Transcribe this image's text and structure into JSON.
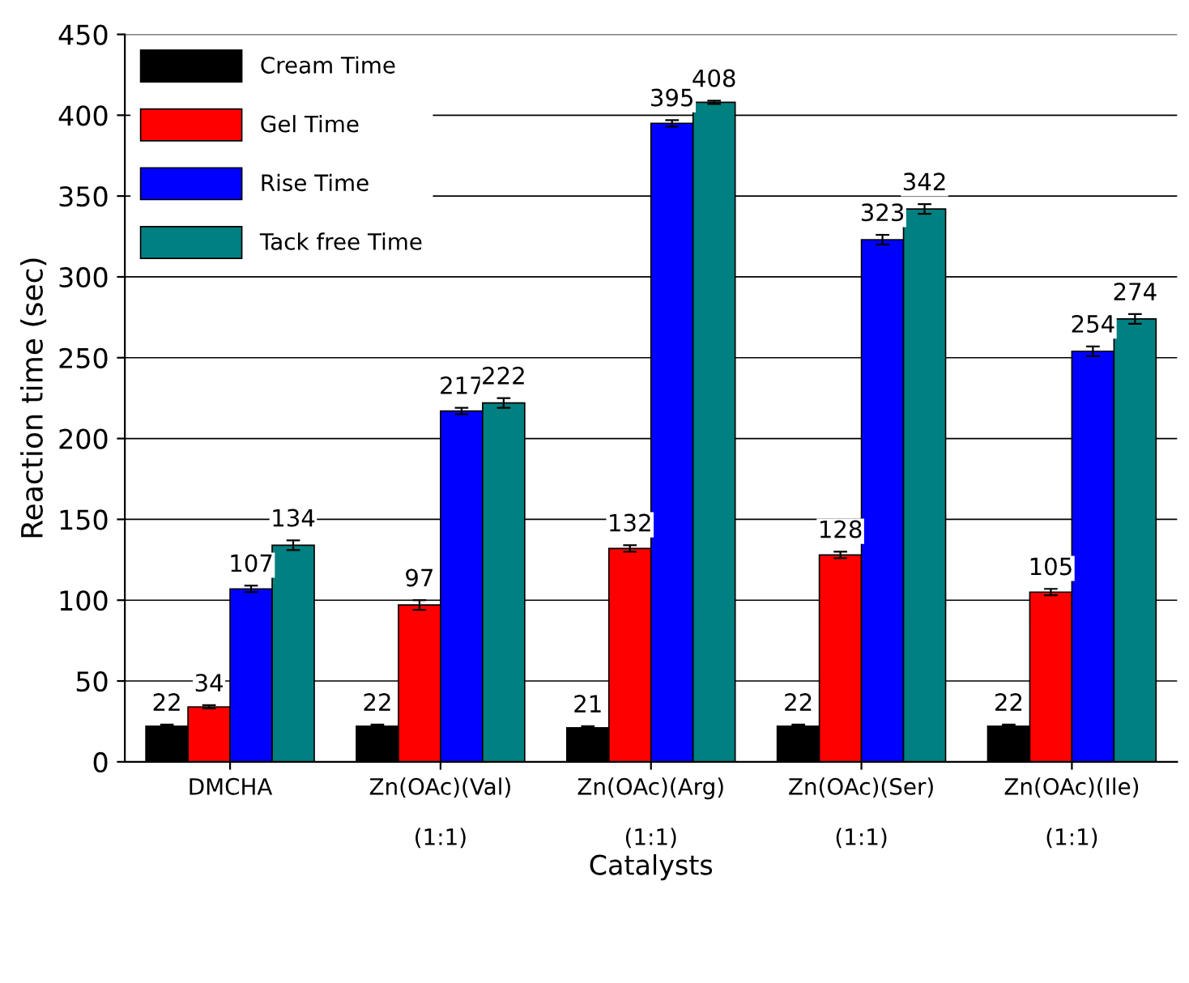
{
  "chart_data": {
    "type": "bar",
    "xlabel": "Catalysts",
    "ylabel": "Reaction time (sec)",
    "categories": [
      "DMCHA",
      "Zn(OAc)(Val)\n\n(1:1)",
      "Zn(OAc)(Arg)\n\n(1:1)",
      "Zn(OAc)(Ser)\n\n(1:1)",
      "Zn(OAc)(Ile)\n\n(1:1)"
    ],
    "series": [
      {
        "name": "Cream Time",
        "color": "#000000",
        "values": [
          22,
          22,
          21,
          22,
          22
        ],
        "errors": [
          1,
          1,
          1,
          1,
          1
        ]
      },
      {
        "name": "Gel Time",
        "color": "#ff0000",
        "values": [
          34,
          97,
          132,
          128,
          105
        ],
        "errors": [
          1,
          3,
          2,
          2,
          2
        ]
      },
      {
        "name": "Rise Time",
        "color": "#0000ff",
        "values": [
          107,
          217,
          395,
          323,
          254
        ],
        "errors": [
          2,
          2,
          2,
          3,
          3
        ]
      },
      {
        "name": "Tack free Time",
        "color": "#008080",
        "values": [
          134,
          222,
          408,
          342,
          274
        ],
        "errors": [
          3,
          3,
          1,
          3,
          3
        ]
      }
    ],
    "ylim": [
      0,
      450
    ],
    "yticks": [
      0,
      50,
      100,
      150,
      200,
      250,
      300,
      350,
      400,
      450
    ],
    "grid": "y",
    "legend": "top left",
    "data_labels": true
  }
}
